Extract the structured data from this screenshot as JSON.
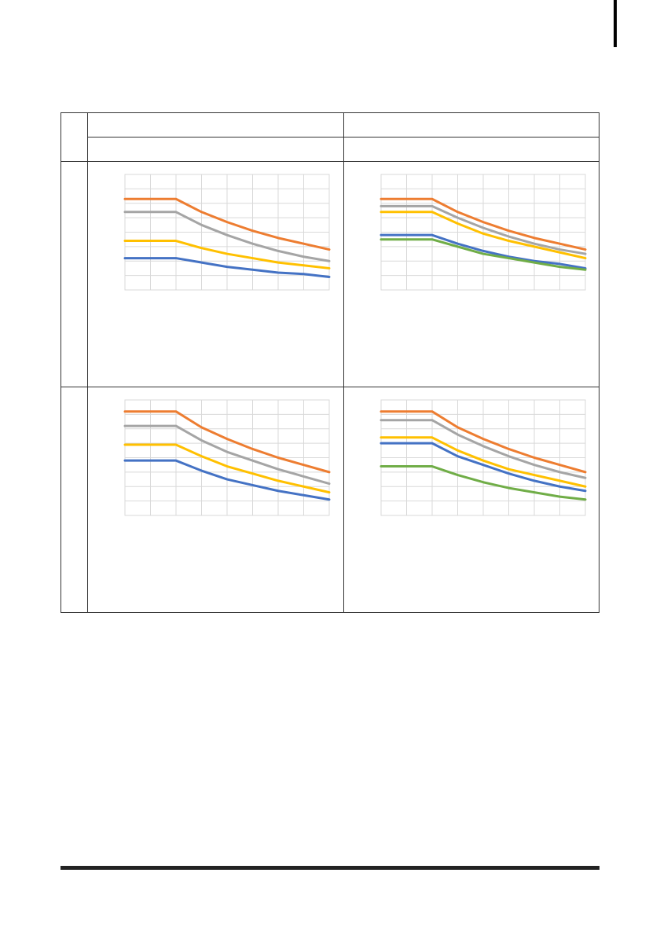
{
  "table": {
    "header": {
      "row1": [
        "",
        ""
      ],
      "row2": [
        "",
        ""
      ]
    },
    "row_labels": [
      "",
      ""
    ]
  },
  "chart_data": [
    {
      "type": "line",
      "title": "",
      "xlabel": "",
      "ylabel": "",
      "x": [
        0,
        1,
        2,
        3,
        4,
        5,
        6,
        7,
        8
      ],
      "ylim": [
        0,
        8
      ],
      "xlim": [
        0,
        8
      ],
      "grid": true,
      "series": [
        {
          "color": "#ED7D31",
          "values": [
            6.3,
            6.3,
            6.3,
            5.4,
            4.7,
            4.1,
            3.6,
            3.2,
            2.8
          ]
        },
        {
          "color": "#A5A5A5",
          "values": [
            5.4,
            5.4,
            5.4,
            4.5,
            3.8,
            3.2,
            2.7,
            2.3,
            2.0
          ]
        },
        {
          "color": "#FFC000",
          "values": [
            3.4,
            3.4,
            3.4,
            2.9,
            2.5,
            2.2,
            1.9,
            1.7,
            1.5
          ]
        },
        {
          "color": "#4472C4",
          "values": [
            2.2,
            2.2,
            2.2,
            1.9,
            1.6,
            1.4,
            1.2,
            1.1,
            0.9
          ]
        }
      ]
    },
    {
      "type": "line",
      "title": "",
      "xlabel": "",
      "ylabel": "",
      "x": [
        0,
        1,
        2,
        3,
        4,
        5,
        6,
        7,
        8
      ],
      "ylim": [
        0,
        8
      ],
      "xlim": [
        0,
        8
      ],
      "grid": true,
      "series": [
        {
          "color": "#ED7D31",
          "values": [
            6.3,
            6.3,
            6.3,
            5.4,
            4.7,
            4.1,
            3.6,
            3.2,
            2.8
          ]
        },
        {
          "color": "#A5A5A5",
          "values": [
            5.8,
            5.8,
            5.8,
            5.0,
            4.3,
            3.7,
            3.2,
            2.8,
            2.5
          ]
        },
        {
          "color": "#FFC000",
          "values": [
            5.4,
            5.4,
            5.4,
            4.6,
            3.9,
            3.4,
            3.0,
            2.6,
            2.2
          ]
        },
        {
          "color": "#4472C4",
          "values": [
            3.8,
            3.8,
            3.8,
            3.2,
            2.7,
            2.3,
            2.0,
            1.8,
            1.5
          ]
        },
        {
          "color": "#70AD47",
          "values": [
            3.5,
            3.5,
            3.5,
            3.0,
            2.5,
            2.2,
            1.9,
            1.6,
            1.4
          ]
        }
      ]
    },
    {
      "type": "line",
      "title": "",
      "xlabel": "",
      "ylabel": "",
      "x": [
        0,
        1,
        2,
        3,
        4,
        5,
        6,
        7,
        8
      ],
      "ylim": [
        0,
        8
      ],
      "xlim": [
        0,
        8
      ],
      "grid": true,
      "series": [
        {
          "color": "#ED7D31",
          "values": [
            7.2,
            7.2,
            7.2,
            6.1,
            5.3,
            4.6,
            4.0,
            3.5,
            3.0
          ]
        },
        {
          "color": "#A5A5A5",
          "values": [
            6.2,
            6.2,
            6.2,
            5.2,
            4.4,
            3.8,
            3.2,
            2.7,
            2.2
          ]
        },
        {
          "color": "#FFC000",
          "values": [
            4.9,
            4.9,
            4.9,
            4.1,
            3.4,
            2.9,
            2.4,
            2.0,
            1.6
          ]
        },
        {
          "color": "#4472C4",
          "values": [
            3.8,
            3.8,
            3.8,
            3.1,
            2.5,
            2.1,
            1.7,
            1.4,
            1.1
          ]
        }
      ]
    },
    {
      "type": "line",
      "title": "",
      "xlabel": "",
      "ylabel": "",
      "x": [
        0,
        1,
        2,
        3,
        4,
        5,
        6,
        7,
        8
      ],
      "ylim": [
        0,
        8
      ],
      "xlim": [
        0,
        8
      ],
      "grid": true,
      "series": [
        {
          "color": "#ED7D31",
          "values": [
            7.2,
            7.2,
            7.2,
            6.1,
            5.3,
            4.6,
            4.0,
            3.5,
            3.0
          ]
        },
        {
          "color": "#A5A5A5",
          "values": [
            6.6,
            6.6,
            6.6,
            5.6,
            4.8,
            4.1,
            3.5,
            3.0,
            2.6
          ]
        },
        {
          "color": "#FFC000",
          "values": [
            5.4,
            5.4,
            5.4,
            4.5,
            3.8,
            3.2,
            2.8,
            2.4,
            2.0
          ]
        },
        {
          "color": "#4472C4",
          "values": [
            5.0,
            5.0,
            5.0,
            4.1,
            3.5,
            2.9,
            2.4,
            2.0,
            1.7
          ]
        },
        {
          "color": "#70AD47",
          "values": [
            3.4,
            3.4,
            3.4,
            2.8,
            2.3,
            1.9,
            1.6,
            1.3,
            1.1
          ]
        }
      ]
    }
  ]
}
